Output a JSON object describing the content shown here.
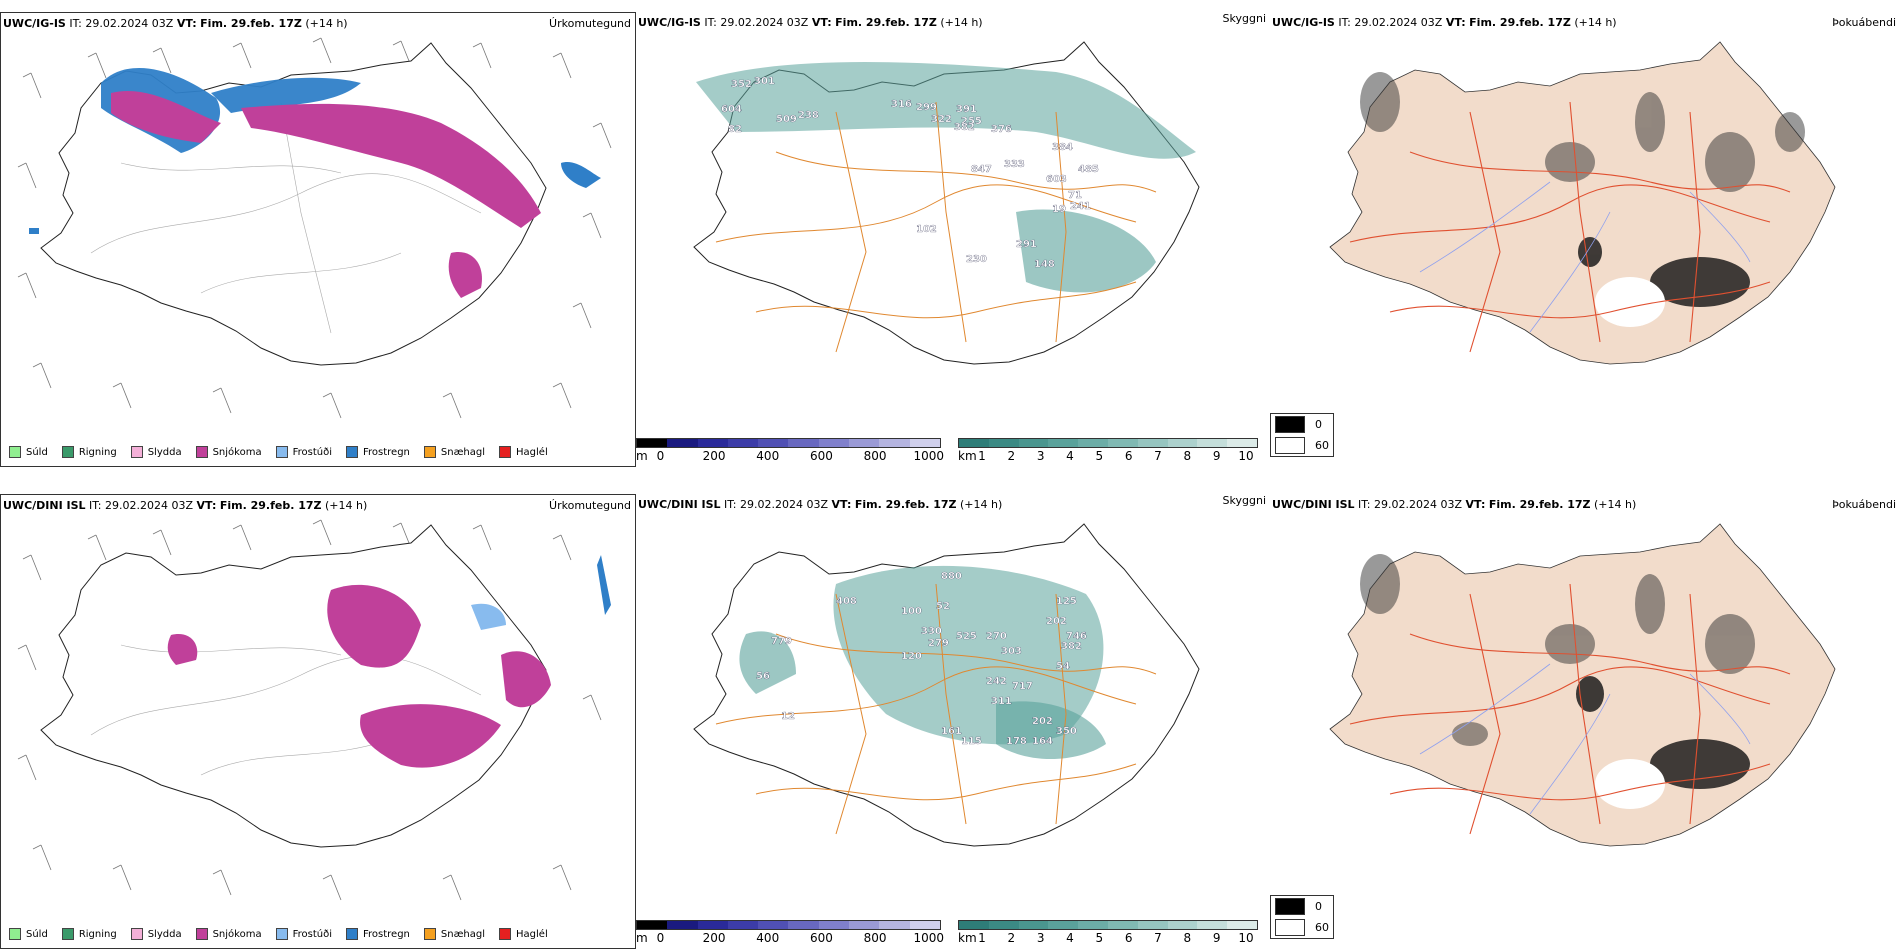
{
  "rows": [
    {
      "precip": {
        "model": "UWC/IG-IS",
        "it_label": "IT:",
        "it_value": "29.02.2024 03Z",
        "vt_label": "VT:",
        "vt_value": "Fim. 29.feb. 17Z",
        "lead": "(+14 h)",
        "title": "Úrkomutegund"
      },
      "cloud": {
        "model": "UWC/IG-IS",
        "it_label": "IT:",
        "it_value": "29.02.2024 03Z",
        "vt_label": "VT:",
        "vt_value": "Fim. 29.feb. 17Z",
        "lead": "(+14 h)",
        "title": "Skyggni",
        "labels": [
          "352",
          "301",
          "604",
          "509",
          "238",
          "82",
          "316",
          "299",
          "391",
          "322",
          "255",
          "382",
          "376",
          "847",
          "333",
          "384",
          "485",
          "603",
          "71",
          "241",
          "19",
          "102",
          "230",
          "291",
          "148"
        ]
      },
      "fog": {
        "model": "UWC/IG-IS",
        "it_label": "IT:",
        "it_value": "29.02.2024 03Z",
        "vt_label": "VT:",
        "vt_value": "Fim. 29.feb. 17Z",
        "lead": "(+14 h)",
        "title": "Þokuábendi"
      }
    },
    {
      "precip": {
        "model": "UWC/DINI ISL",
        "it_label": "IT:",
        "it_value": "29.02.2024 03Z",
        "vt_label": "VT:",
        "vt_value": "Fim. 29.feb. 17Z",
        "lead": "(+14 h)",
        "title": "Úrkomutegund"
      },
      "cloud": {
        "model": "UWC/DINI ISL",
        "it_label": "IT:",
        "it_value": "29.02.2024 03Z",
        "vt_label": "VT:",
        "vt_value": "Fim. 29.feb. 17Z",
        "lead": "(+14 h)",
        "title": "Skyggni",
        "labels": [
          "408",
          "779",
          "56",
          "12",
          "880",
          "100",
          "52",
          "330",
          "525",
          "279",
          "120",
          "270",
          "303",
          "125",
          "202",
          "746",
          "382",
          "54",
          "242",
          "717",
          "311",
          "161",
          "115",
          "178",
          "202",
          "164",
          "350"
        ]
      },
      "fog": {
        "model": "UWC/DINI ISL",
        "it_label": "IT:",
        "it_value": "29.02.2024 03Z",
        "vt_label": "VT:",
        "vt_value": "Fim. 29.feb. 17Z",
        "lead": "(+14 h)",
        "title": "Þokuábendi"
      }
    }
  ],
  "precip_legend": [
    {
      "label": "Súld",
      "color": "#90ee90"
    },
    {
      "label": "Rigning",
      "color": "#3a9a6a"
    },
    {
      "label": "Slydda",
      "color": "#f4b0d8"
    },
    {
      "label": "Snjókoma",
      "color": "#c0409a"
    },
    {
      "label": "Frostúði",
      "color": "#88bbee"
    },
    {
      "label": "Frostregn",
      "color": "#2f7fc8"
    },
    {
      "label": "Snæhagl",
      "color": "#f4a020"
    },
    {
      "label": "Haglél",
      "color": "#e52020"
    }
  ],
  "cloud_base_bar": {
    "unit": "m",
    "ticks": [
      "0",
      "200",
      "400",
      "600",
      "800",
      "1000"
    ],
    "colors": [
      "#000000",
      "#1a1a80",
      "#2a2a9a",
      "#3c3ca8",
      "#5050b4",
      "#6868c0",
      "#8080cc",
      "#9a9ad6",
      "#b4b4e0",
      "#d0d0ec"
    ]
  },
  "visibility_bar": {
    "unit": "km",
    "ticks": [
      "1",
      "2",
      "3",
      "4",
      "5",
      "6",
      "7",
      "8",
      "9",
      "10"
    ],
    "colors": [
      "#2e7d78",
      "#3b8a84",
      "#4a968f",
      "#5aa29b",
      "#6cada7",
      "#80b9b3",
      "#96c5c0",
      "#acd1cd",
      "#c4deda",
      "#dcebe8"
    ]
  },
  "fog_legend": {
    "high_label": "0",
    "low_label": "60"
  }
}
